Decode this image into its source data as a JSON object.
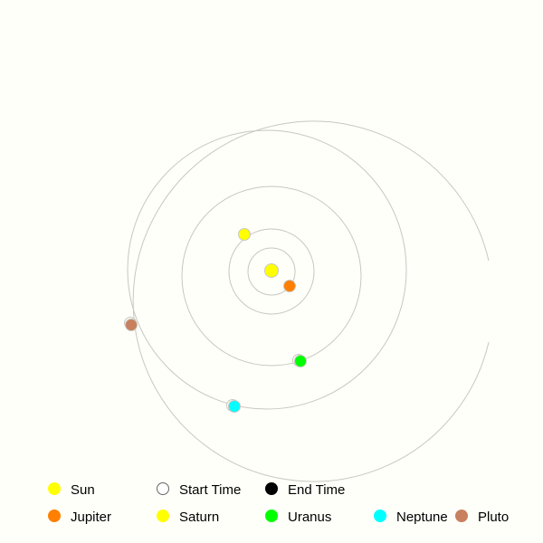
{
  "colors": {
    "background": "#fffffa",
    "orbit_line": "#c8c8c0",
    "marker_edge": "#c8c8c0",
    "sun": "#ffff00",
    "jupiter": "#ff8000",
    "saturn": "#ffff00",
    "uranus": "#00ff00",
    "neptune": "#00ffff",
    "pluto": "#c8805e",
    "start_time_fill": "#ffffff",
    "start_time_edge": "#666666",
    "end_time": "#000000"
  },
  "legend": {
    "items": [
      {
        "key": "sun",
        "label": "Sun",
        "marker": "sun"
      },
      {
        "key": "start_time",
        "label": "Start Time",
        "marker": "start_time"
      },
      {
        "key": "end_time",
        "label": "End Time",
        "marker": "end_time"
      },
      {
        "key": "jupiter",
        "label": "Jupiter",
        "marker": "jupiter"
      },
      {
        "key": "saturn",
        "label": "Saturn",
        "marker": "saturn"
      },
      {
        "key": "uranus",
        "label": "Uranus",
        "marker": "uranus"
      },
      {
        "key": "neptune",
        "label": "Neptune",
        "marker": "neptune"
      },
      {
        "key": "pluto",
        "label": "Pluto",
        "marker": "pluto"
      }
    ]
  }
}
